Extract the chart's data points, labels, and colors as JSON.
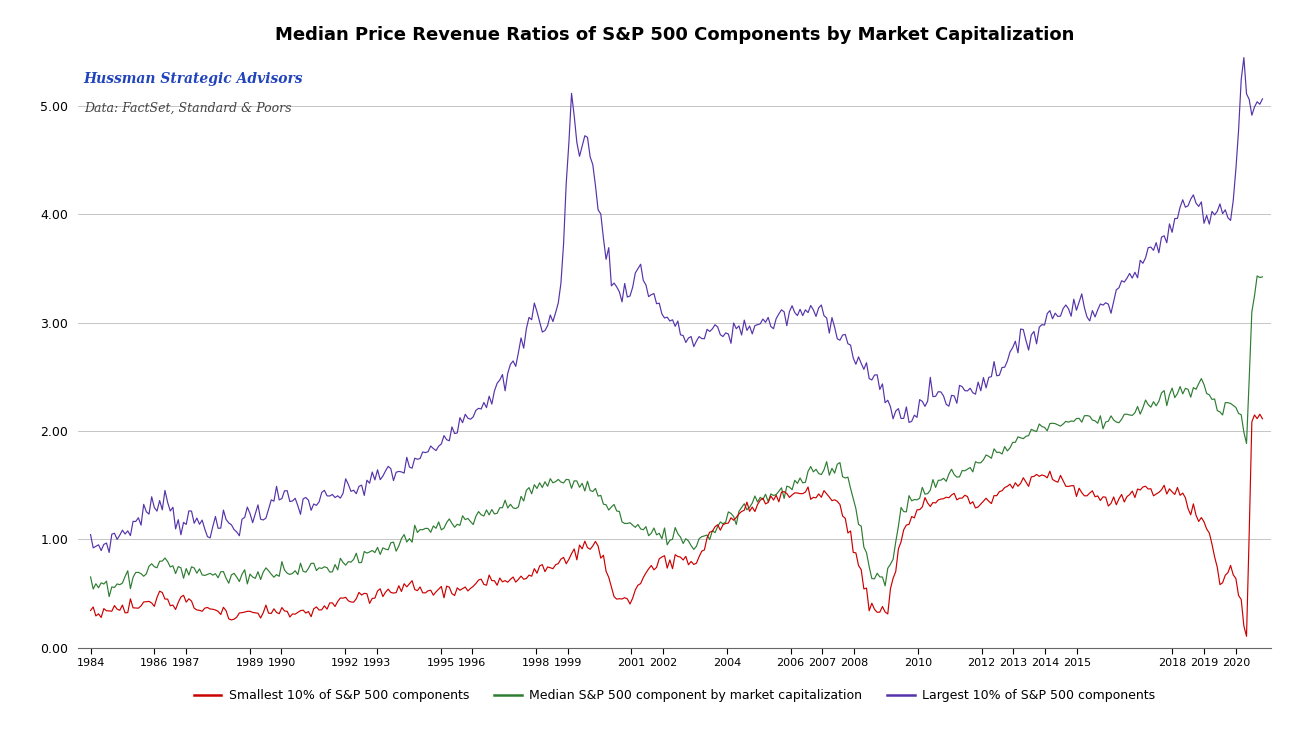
{
  "title": "Median Price Revenue Ratios of S&P 500 Components by Market Capitalization",
  "annotation_line1": "Hussman Strategic Advisors",
  "annotation_line2": "Data: FactSet, Standard & Poors",
  "annotation_color1": "#2244bb",
  "annotation_color2": "#444444",
  "ylim": [
    0.0,
    5.5
  ],
  "yticks": [
    0.0,
    1.0,
    2.0,
    3.0,
    4.0,
    5.0
  ],
  "line_colors": {
    "small": "#cc0000",
    "median": "#2e7d32",
    "large": "#5533aa"
  },
  "legend_labels": {
    "small": "Smallest 10% of S&P 500 components",
    "median": "Median S&P 500 component by market capitalization",
    "large": "Largest 10% of S&P 500 components"
  },
  "x_tick_vals": [
    1984,
    1986,
    1987,
    1989,
    1990,
    1992,
    1993,
    1995,
    1996,
    1998,
    1999,
    2001,
    2002,
    2004,
    2006,
    2007,
    2008,
    2010,
    2012,
    2013,
    2014,
    2015,
    2018,
    2019,
    2020
  ],
  "background_color": "#ffffff",
  "grid_color": "#bbbbbb",
  "title_fontsize": 13,
  "annotation_fontsize1": 10,
  "annotation_fontsize2": 9,
  "line_width": 0.85
}
